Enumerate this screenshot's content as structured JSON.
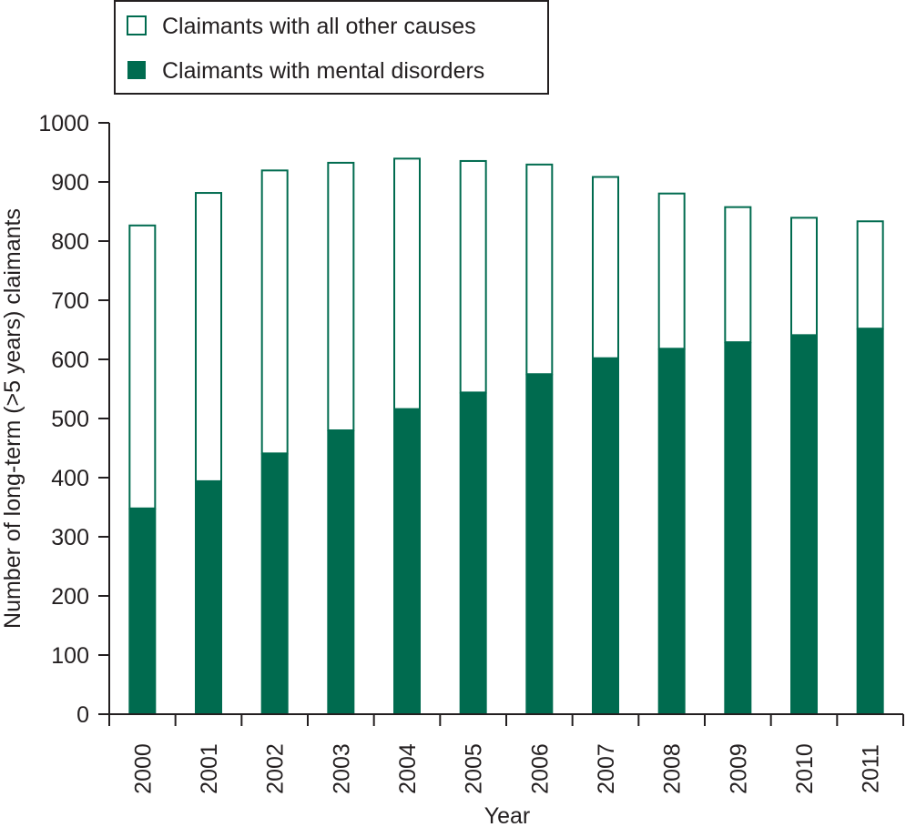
{
  "chart_data": {
    "type": "bar",
    "stacked": true,
    "categories": [
      "2000",
      "2001",
      "2002",
      "2003",
      "2004",
      "2005",
      "2006",
      "2007",
      "2008",
      "2009",
      "2010",
      "2011"
    ],
    "series": [
      {
        "name": "Claimants with mental disorders",
        "values": [
          348,
          394,
          441,
          480,
          516,
          544,
          575,
          602,
          618,
          629,
          641,
          652
        ],
        "fill": "#006b4f",
        "stroke": "#006b4f"
      },
      {
        "name": "Claimants with all other causes",
        "values": [
          480,
          489,
          480,
          454,
          425,
          393,
          356,
          308,
          264,
          230,
          200,
          183
        ],
        "fill": "#ffffff",
        "stroke": "#006b4f"
      }
    ],
    "totals": [
      828,
      883,
      921,
      934,
      941,
      937,
      931,
      910,
      882,
      859,
      841,
      835
    ],
    "xlabel": "Year",
    "ylabel": "Number of long-term (>5 years) claimants",
    "ylim": [
      0,
      1000
    ],
    "yticks": [
      0,
      100,
      200,
      300,
      400,
      500,
      600,
      700,
      800,
      900,
      1000
    ],
    "grid": false,
    "legend": {
      "position": "top-left",
      "order": [
        "Claimants with all other causes",
        "Claimants with mental disorders"
      ]
    },
    "colors": {
      "primary": "#006b4f",
      "axis": "#231f20",
      "background": "#ffffff"
    }
  }
}
